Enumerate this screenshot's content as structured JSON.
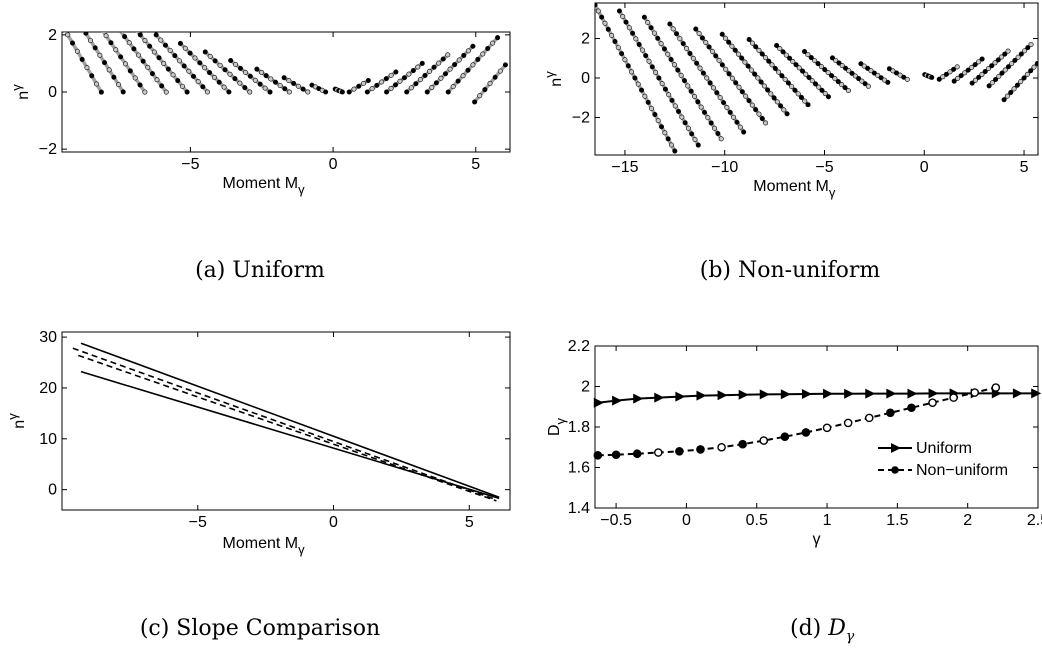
{
  "captions": {
    "a": "(a) Uniform",
    "b": "(b) Non-uniform",
    "c": "(c) Slope Comparison",
    "d_prefix": "(d) ",
    "d_math": "D",
    "d_sub": "γ"
  },
  "colors": {
    "line": "#000000",
    "gray_line": "#a0a0a0",
    "marker_dark": "#000000",
    "marker_light": "#c8c8c8"
  },
  "chart_data": [
    {
      "id": "a",
      "type": "scatter",
      "title": "",
      "xlabel": "Moment M",
      "xlabel_sub": "γ",
      "ylabel": "n",
      "ylabel_sup": "γ",
      "xlim": [
        -9.5,
        6.2
      ],
      "ylim": [
        -2.1,
        2.1
      ],
      "xticks": [
        -5,
        0,
        5
      ],
      "yticks": [
        -2,
        0,
        2
      ],
      "grid": false,
      "lines": [
        {
          "m": -9.3,
          "n": 2.0,
          "slope": -1.7,
          "dm": 2.36
        },
        {
          "m": -8.5,
          "n": 1.8,
          "slope": -1.57,
          "dm": 2.29
        },
        {
          "m": -7.7,
          "n": 1.6,
          "slope": -1.45,
          "dm": 2.21
        },
        {
          "m": -6.9,
          "n": 1.4,
          "slope": -1.33,
          "dm": 2.11
        },
        {
          "m": -6.1,
          "n": 1.2,
          "slope": -1.22,
          "dm": 1.97
        },
        {
          "m": -5.3,
          "n": 1.0,
          "slope": -1.11,
          "dm": 1.8
        },
        {
          "m": -4.5,
          "n": 0.85,
          "slope": -1.0,
          "dm": 1.7
        },
        {
          "m": -3.7,
          "n": 0.7,
          "slope": -0.9,
          "dm": 1.56
        },
        {
          "m": -2.9,
          "n": 0.55,
          "slope": -0.8,
          "dm": 1.38
        },
        {
          "m": -2.1,
          "n": 0.4,
          "slope": -0.7,
          "dm": 1.14
        },
        {
          "m": -1.3,
          "n": 0.25,
          "slope": -0.6,
          "dm": 0.83
        },
        {
          "m": -0.5,
          "n": 0.12,
          "slope": -0.5,
          "dm": 0.48
        },
        {
          "m": 0.2,
          "n": 0.05,
          "slope": -0.4,
          "dm": 0.25
        },
        {
          "m": 0.9,
          "n": 0.2,
          "slope": 0.6,
          "dm": 0.67
        },
        {
          "m": 1.7,
          "n": 0.35,
          "slope": 0.7,
          "dm": 1.0
        },
        {
          "m": 2.5,
          "n": 0.5,
          "slope": 0.8,
          "dm": 1.25
        },
        {
          "m": 3.3,
          "n": 0.65,
          "slope": 0.9,
          "dm": 1.44
        },
        {
          "m": 4.1,
          "n": 0.8,
          "slope": 1.0,
          "dm": 1.6
        },
        {
          "m": 4.9,
          "n": 0.95,
          "slope": 1.1,
          "dm": 1.73
        },
        {
          "m": 5.5,
          "n": 0.3,
          "slope": 1.2,
          "dm": 1.08
        }
      ]
    },
    {
      "id": "b",
      "type": "scatter",
      "title": "",
      "xlabel": "Moment M",
      "xlabel_sub": "γ",
      "ylabel": "n",
      "ylabel_sup": "γ",
      "xlim": [
        -16.5,
        5.7
      ],
      "ylim": [
        -3.9,
        3.8
      ],
      "xticks": [
        -15,
        -10,
        -5,
        0,
        5
      ],
      "yticks": [
        -2,
        0,
        2
      ],
      "grid": false,
      "lines": [
        {
          "m": -14.5,
          "n": 0.0,
          "slope": -1.85,
          "dm": 4.0
        },
        {
          "m": -13.3,
          "n": 0.0,
          "slope": -1.72,
          "dm": 3.95
        },
        {
          "m": -12.1,
          "n": 0.0,
          "slope": -1.6,
          "dm": 3.85
        },
        {
          "m": -10.9,
          "n": 0.0,
          "slope": -1.48,
          "dm": 3.7
        },
        {
          "m": -9.7,
          "n": 0.1,
          "slope": -1.36,
          "dm": 3.5
        },
        {
          "m": -8.5,
          "n": 0.2,
          "slope": -1.24,
          "dm": 3.25
        },
        {
          "m": -7.3,
          "n": 0.3,
          "slope": -1.12,
          "dm": 2.95
        },
        {
          "m": -6.1,
          "n": 0.35,
          "slope": -1.0,
          "dm": 2.6
        },
        {
          "m": -4.9,
          "n": 0.35,
          "slope": -0.9,
          "dm": 2.2
        },
        {
          "m": -3.7,
          "n": 0.3,
          "slope": -0.8,
          "dm": 1.8
        },
        {
          "m": -2.5,
          "n": 0.25,
          "slope": -0.7,
          "dm": 1.35
        },
        {
          "m": -1.3,
          "n": 0.2,
          "slope": -0.6,
          "dm": 0.9
        },
        {
          "m": 0.2,
          "n": 0.1,
          "slope": -0.4,
          "dm": 0.35
        },
        {
          "m": 1.2,
          "n": 0.25,
          "slope": 0.7,
          "dm": 0.9
        },
        {
          "m": 2.2,
          "n": 0.4,
          "slope": 0.8,
          "dm": 1.4
        },
        {
          "m": 3.3,
          "n": 0.55,
          "slope": 0.9,
          "dm": 1.8
        },
        {
          "m": 4.3,
          "n": 0.65,
          "slope": 1.0,
          "dm": 2.1
        },
        {
          "m": 5.0,
          "n": 0.0,
          "slope": 1.1,
          "dm": 2.0
        }
      ]
    },
    {
      "id": "c",
      "type": "line",
      "title": "",
      "xlabel": "Moment M",
      "xlabel_sub": "γ",
      "ylabel": "n",
      "ylabel_sup": "γ",
      "xlim": [
        -10,
        6.5
      ],
      "ylim": [
        -4,
        31
      ],
      "xticks": [
        -5,
        0,
        5
      ],
      "yticks": [
        0,
        10,
        20,
        30
      ],
      "grid": false,
      "series": [
        {
          "style": "solid",
          "x": [
            -9.3,
            6.1
          ],
          "y": [
            28.8,
            -1.5
          ]
        },
        {
          "style": "dashed",
          "x": [
            -9.6,
            6.0
          ],
          "y": [
            27.8,
            -2.0
          ]
        },
        {
          "style": "dashed",
          "x": [
            -9.4,
            6.0
          ],
          "y": [
            26.4,
            -2.2
          ]
        },
        {
          "style": "solid",
          "x": [
            -9.3,
            6.1
          ],
          "y": [
            23.2,
            -1.7
          ]
        }
      ]
    },
    {
      "id": "d",
      "type": "line",
      "title": "",
      "xlabel": "γ",
      "ylabel": "D",
      "ylabel_sub": "γ",
      "xlim": [
        -0.65,
        2.5
      ],
      "ylim": [
        1.4,
        2.2
      ],
      "xticks": [
        -0.5,
        0,
        0.5,
        1,
        1.5,
        2,
        2.5
      ],
      "yticks": [
        1.4,
        1.6,
        1.8,
        2,
        2.2
      ],
      "ytick_labels": [
        "1.4",
        "1.6",
        "1.8",
        "2",
        "2.2"
      ],
      "xtick_labels": [
        "−0.5",
        "0",
        "0.5",
        "1",
        "1.5",
        "2",
        "2.5"
      ],
      "grid": false,
      "legend_position": "bottom-right",
      "series": [
        {
          "name": "Uniform",
          "style": "solid",
          "marker": "triangle-right",
          "x": [
            -0.63,
            -0.5,
            -0.35,
            -0.2,
            -0.05,
            0.1,
            0.25,
            0.4,
            0.55,
            0.7,
            0.85,
            1.0,
            1.15,
            1.3,
            1.45,
            1.6,
            1.75,
            1.9,
            2.05,
            2.2,
            2.35,
            2.48
          ],
          "y": [
            1.92,
            1.93,
            1.94,
            1.945,
            1.95,
            1.955,
            1.957,
            1.959,
            1.961,
            1.962,
            1.963,
            1.964,
            1.964,
            1.965,
            1.965,
            1.965,
            1.966,
            1.966,
            1.966,
            1.966,
            1.966,
            1.966
          ]
        },
        {
          "name": "Non−uniform",
          "style": "dashed",
          "marker": "circle",
          "x": [
            -0.63,
            -0.5,
            -0.35,
            -0.2,
            -0.05,
            0.1,
            0.25,
            0.4,
            0.55,
            0.7,
            0.85,
            1.0,
            1.15,
            1.3,
            1.45,
            1.6,
            1.75,
            1.9,
            2.05,
            2.2
          ],
          "y": [
            1.66,
            1.663,
            1.668,
            1.674,
            1.68,
            1.689,
            1.7,
            1.715,
            1.733,
            1.752,
            1.773,
            1.796,
            1.82,
            1.845,
            1.87,
            1.895,
            1.92,
            1.945,
            1.97,
            1.995
          ],
          "filled": [
            true,
            true,
            true,
            false,
            true,
            true,
            false,
            true,
            false,
            true,
            true,
            false,
            false,
            false,
            true,
            true,
            false,
            false,
            false,
            false
          ]
        }
      ]
    }
  ]
}
